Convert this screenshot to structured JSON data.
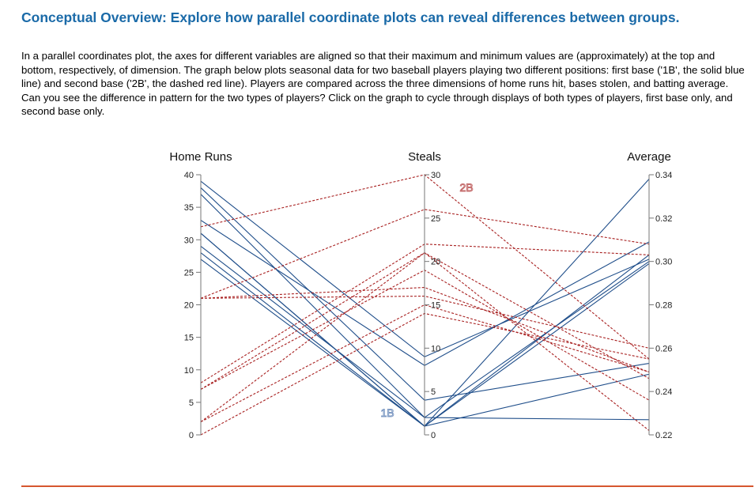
{
  "title": "Conceptual Overview: Explore how parallel coordinate plots can reveal differences between groups.",
  "description": "In a parallel coordinates plot, the axes for different variables are aligned so that their maximum and minimum values are (approximately) at the top and bottom, respectively, of dimension. The graph below plots seasonal data for two baseball players playing two different positions: first base ('1B', the solid blue line) and second base ('2B', the dashed red line). Players are compared across the three dimensions of home runs hit, bases stolen, and batting average. Can you see the difference in pattern for the two types of players? Click on the graph to cycle through displays of both types of players, first base only, and second base only.",
  "chart_data": {
    "type": "parallel-coordinates",
    "axes": [
      {
        "name": "Home Runs",
        "range": [
          0,
          40
        ],
        "ticks": [
          "0",
          "5",
          "10",
          "15",
          "20",
          "25",
          "30",
          "35",
          "40"
        ]
      },
      {
        "name": "Steals",
        "range": [
          0,
          30
        ],
        "ticks": [
          "0",
          "5",
          "10",
          "15",
          "20",
          "25",
          "30"
        ]
      },
      {
        "name": "Average",
        "range": [
          0.22,
          0.34
        ],
        "ticks": [
          "0.22",
          "0.24",
          "0.26",
          "0.28",
          "0.30",
          "0.32",
          "0.34"
        ]
      }
    ],
    "series": [
      {
        "name": "1B",
        "color": "#1f4e8a",
        "style": "solid",
        "records": [
          [
            39,
            9,
            0.301
          ],
          [
            38,
            4,
            0.253
          ],
          [
            37,
            2,
            0.3
          ],
          [
            33,
            8,
            0.309
          ],
          [
            31,
            1,
            0.338
          ],
          [
            31,
            1,
            0.299
          ],
          [
            29,
            2,
            0.227
          ],
          [
            28,
            1,
            0.248
          ],
          [
            27,
            1,
            0.303
          ]
        ]
      },
      {
        "name": "2B",
        "color": "#a82020",
        "style": "dashed",
        "records": [
          [
            32,
            30,
            0.255
          ],
          [
            21,
            26,
            0.308
          ],
          [
            21,
            17,
            0.249
          ],
          [
            21,
            16,
            0.26
          ],
          [
            8,
            22,
            0.303
          ],
          [
            7,
            21,
            0.246
          ],
          [
            7,
            19,
            0.236
          ],
          [
            2,
            21,
            0.222
          ],
          [
            2,
            15,
            0.249
          ],
          [
            0,
            14,
            0.255
          ]
        ]
      }
    ]
  }
}
